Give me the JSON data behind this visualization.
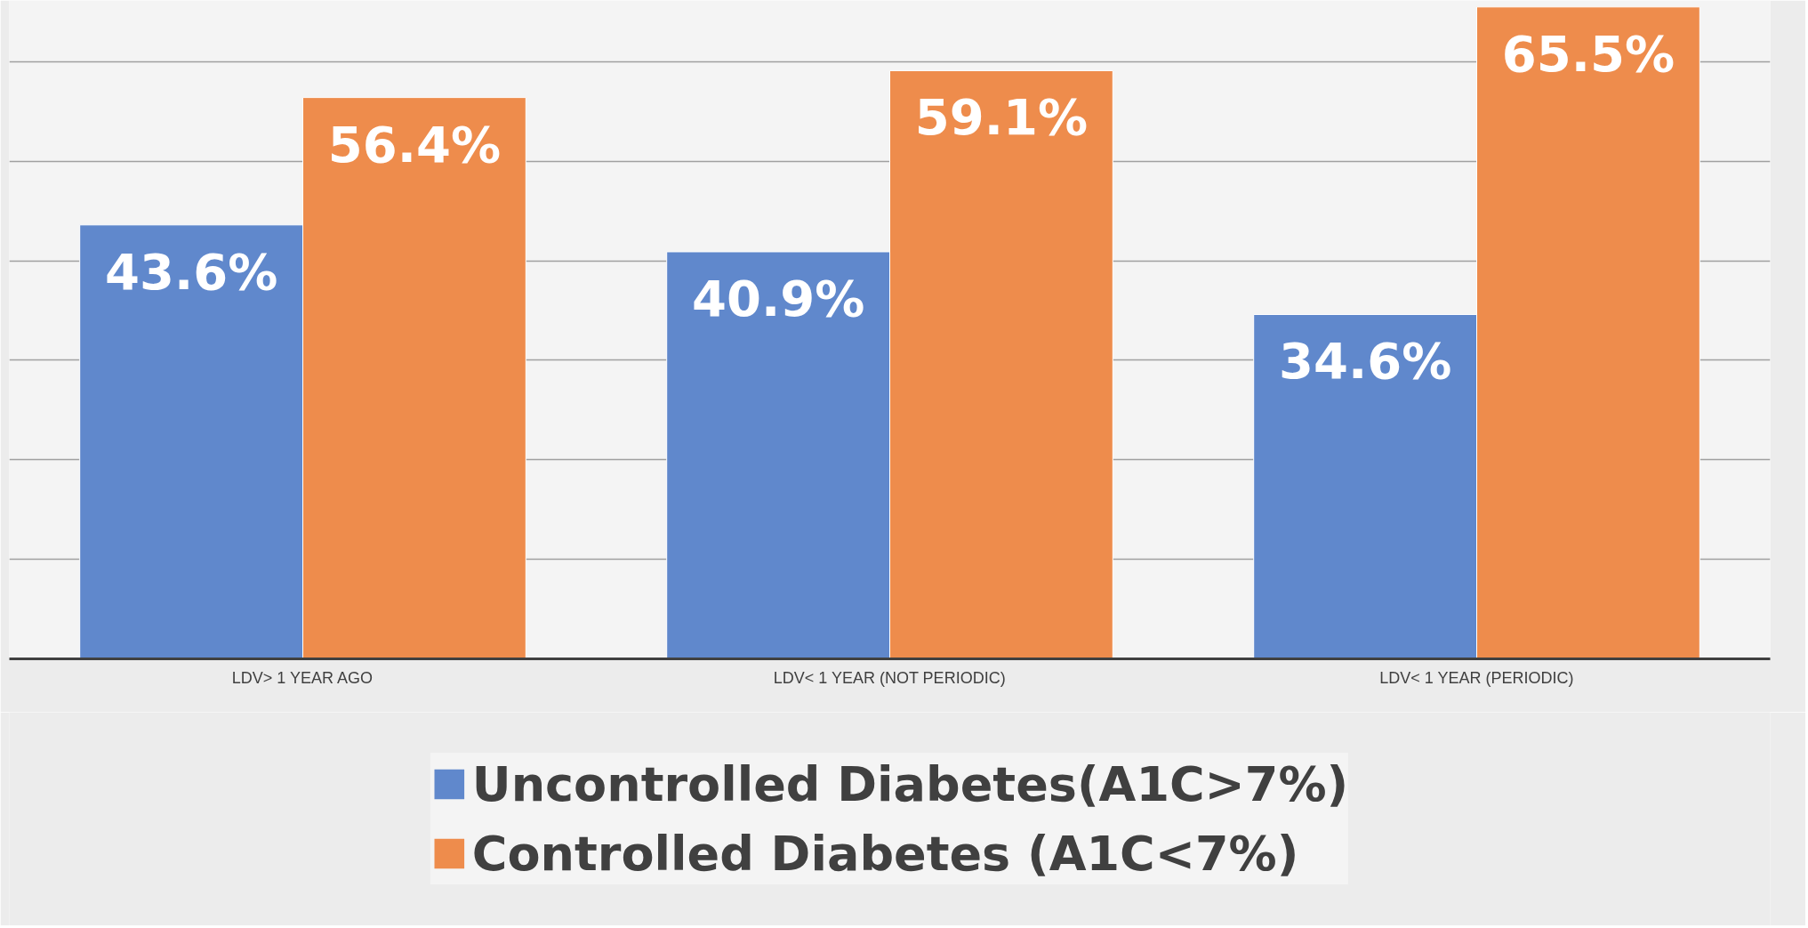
{
  "chart_data": {
    "type": "bar",
    "categories": [
      "LDV> 1 YEAR AGO",
      "LDV< 1 YEAR (NOT PERIODIC)",
      "LDV< 1 YEAR (PERIODIC)"
    ],
    "series": [
      {
        "name": "Uncontrolled Diabetes(A1C>7%)",
        "color": "#6088cc",
        "values": [
          43.6,
          40.9,
          34.6
        ],
        "value_labels": [
          "43.6%",
          "40.9%",
          "34.6%"
        ]
      },
      {
        "name": "Controlled Diabetes (A1C<7%)",
        "color": "#ee8c4c",
        "values": [
          56.4,
          59.1,
          65.5
        ],
        "value_labels": [
          "56.4%",
          "59.1%",
          "65.5%"
        ]
      }
    ],
    "grid": "y",
    "tick_labels": "x",
    "legend": "bottom"
  }
}
